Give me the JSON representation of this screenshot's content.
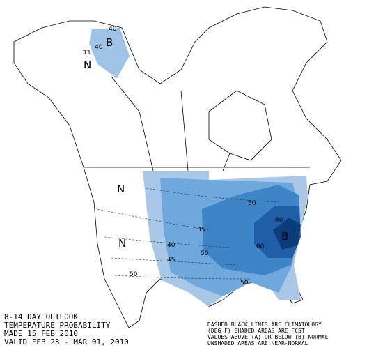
{
  "header": {
    "lines": [
      "8-14 DAY OUTLOOK",
      "TEMPERATURE PROBABILITY",
      "MADE  15 FEB 2010",
      "VALID  FEB 23 - MAR 01, 2010"
    ]
  },
  "notes": {
    "lines": [
      "DASHED BLACK LINES ARE CLIMATOLOGY",
      "(DEG F) SHADED AREAS ARE FCST",
      "VALUES ABOVE (A) OR BELOW (B) NORMAL",
      "UNSHADED AREAS ARE NEAR-NORMAL"
    ]
  },
  "map": {
    "labels": [
      "B",
      "40",
      "33",
      "40",
      "N",
      "N",
      "N",
      "B",
      "50",
      "50",
      "60",
      "60",
      "35",
      "40",
      "45",
      "50",
      "50"
    ]
  }
}
